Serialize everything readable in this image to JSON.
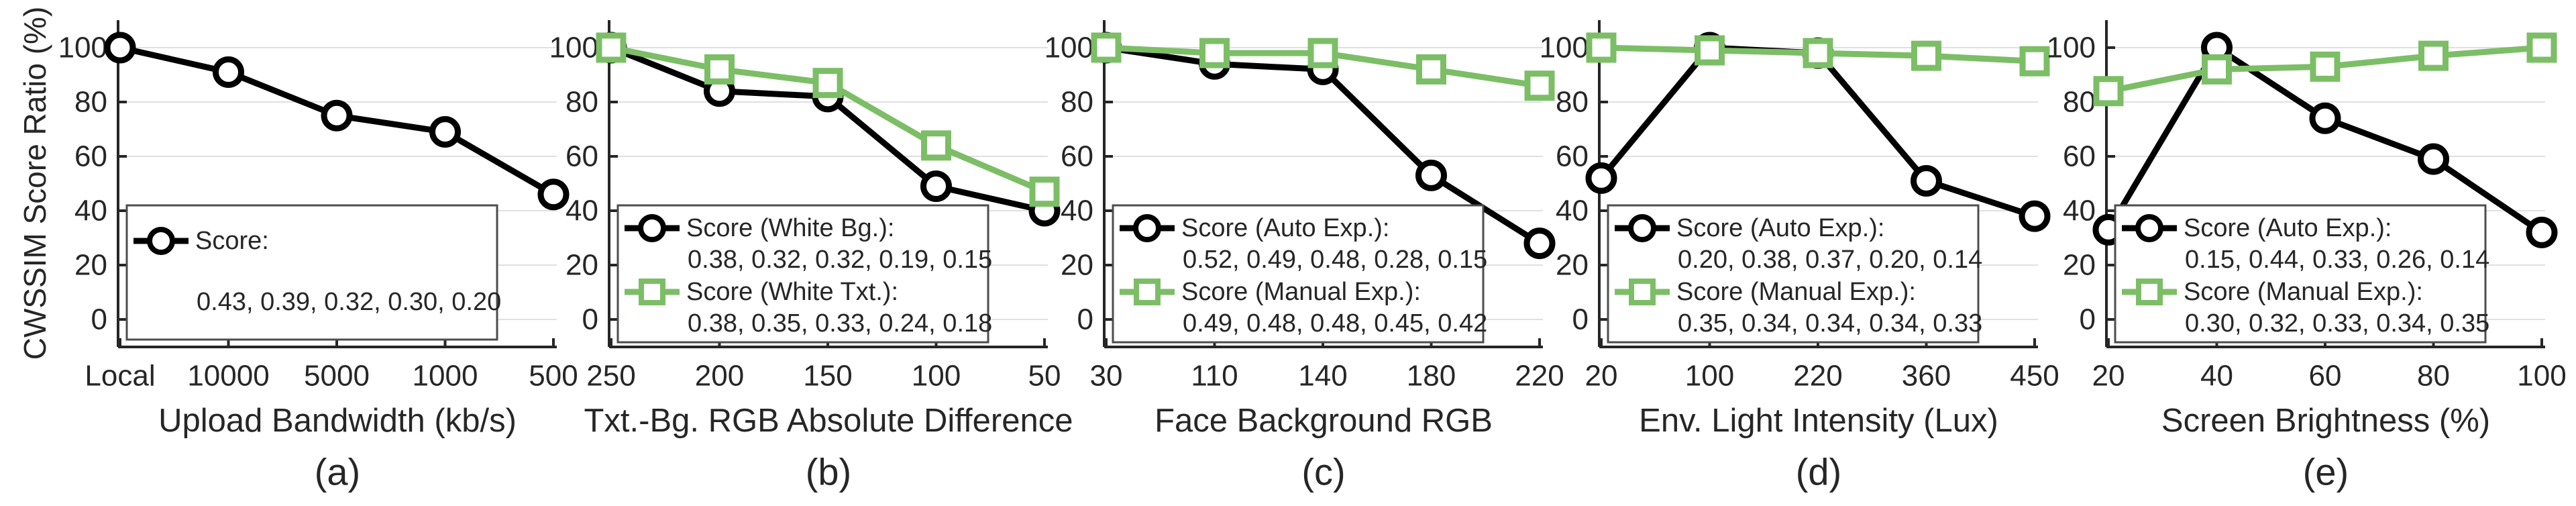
{
  "figure": {
    "ylabel": "CWSSIM Score Ratio (%)",
    "yticks": [
      0,
      20,
      40,
      60,
      80,
      100
    ],
    "colors": {
      "black_series": "#000000",
      "green_series": "#7CBE66",
      "grid": "#E0E0E0",
      "axis": "#262626",
      "text": "#262626",
      "legend_border": "#4D4D4D",
      "background": "#FFFFFF"
    }
  },
  "chart_data": [
    {
      "id": "a",
      "type": "line",
      "caption": "(a)",
      "xlabel": "Upload Bandwidth (kb/s)",
      "categories": [
        "Local",
        "10000",
        "5000",
        "1000",
        "500"
      ],
      "ylim": [
        -10,
        110
      ],
      "grid": "horizontal",
      "legend_position": "bottom-left",
      "series": [
        {
          "name": "Score:",
          "marker": "circle",
          "color": "#000000",
          "values_pct": [
            100,
            91,
            75,
            69,
            46
          ],
          "legend_scores": "0.43, 0.39, 0.32, 0.30, 0.20"
        }
      ]
    },
    {
      "id": "b",
      "type": "line",
      "caption": "(b)",
      "xlabel": "Txt.-Bg. RGB Absolute Difference",
      "categories": [
        "250",
        "200",
        "150",
        "100",
        "50"
      ],
      "ylim": [
        -10,
        110
      ],
      "grid": "horizontal",
      "legend_position": "bottom-left",
      "series": [
        {
          "name": "Score (White Bg.):",
          "marker": "circle",
          "color": "#000000",
          "values_pct": [
            100,
            84,
            82,
            49,
            40
          ],
          "legend_scores": "0.38, 0.32, 0.32, 0.19, 0.15"
        },
        {
          "name": "Score (White Txt.):",
          "marker": "square",
          "color": "#7CBE66",
          "values_pct": [
            100,
            92,
            87,
            64,
            47
          ],
          "legend_scores": "0.38, 0.35, 0.33, 0.24, 0.18"
        }
      ]
    },
    {
      "id": "c",
      "type": "line",
      "caption": "(c)",
      "xlabel": "Face Background RGB",
      "categories": [
        "30",
        "110",
        "140",
        "180",
        "220"
      ],
      "ylim": [
        -10,
        110
      ],
      "grid": "horizontal",
      "legend_position": "bottom-left",
      "series": [
        {
          "name": "Score (Auto Exp.):",
          "marker": "circle",
          "color": "#000000",
          "values_pct": [
            100,
            94,
            92,
            53,
            28
          ],
          "legend_scores": "0.52, 0.49, 0.48, 0.28, 0.15"
        },
        {
          "name": "Score (Manual Exp.):",
          "marker": "square",
          "color": "#7CBE66",
          "values_pct": [
            100,
            98,
            98,
            92,
            86
          ],
          "legend_scores": "0.49, 0.48, 0.48, 0.45, 0.42"
        }
      ]
    },
    {
      "id": "d",
      "type": "line",
      "caption": "(d)",
      "xlabel": "Env. Light Intensity (Lux)",
      "categories": [
        "20",
        "100",
        "220",
        "360",
        "450"
      ],
      "ylim": [
        -10,
        110
      ],
      "grid": "horizontal",
      "legend_position": "bottom-left",
      "series": [
        {
          "name": "Score (Auto Exp.):",
          "marker": "circle",
          "color": "#000000",
          "values_pct": [
            52,
            100,
            98,
            51,
            38
          ],
          "legend_scores": "0.20, 0.38, 0.37, 0.20, 0.14"
        },
        {
          "name": "Score (Manual Exp.):",
          "marker": "square",
          "color": "#7CBE66",
          "values_pct": [
            100,
            99,
            98,
            97,
            95
          ],
          "legend_scores": "0.35, 0.34, 0.34, 0.34, 0.33"
        }
      ]
    },
    {
      "id": "e",
      "type": "line",
      "caption": "(e)",
      "xlabel": "Screen Brightness (%)",
      "categories": [
        "20",
        "40",
        "60",
        "80",
        "100"
      ],
      "ylim": [
        -10,
        110
      ],
      "grid": "horizontal",
      "legend_position": "bottom-left",
      "series": [
        {
          "name": "Score (Auto Exp.):",
          "marker": "circle",
          "color": "#000000",
          "values_pct": [
            33,
            100,
            74,
            59,
            32
          ],
          "legend_scores": "0.15, 0.44, 0.33, 0.26, 0.14"
        },
        {
          "name": "Score (Manual Exp.):",
          "marker": "square",
          "color": "#7CBE66",
          "values_pct": [
            84,
            92,
            93,
            97,
            100
          ],
          "legend_scores": "0.30, 0.32, 0.33, 0.34, 0.35"
        }
      ]
    }
  ]
}
